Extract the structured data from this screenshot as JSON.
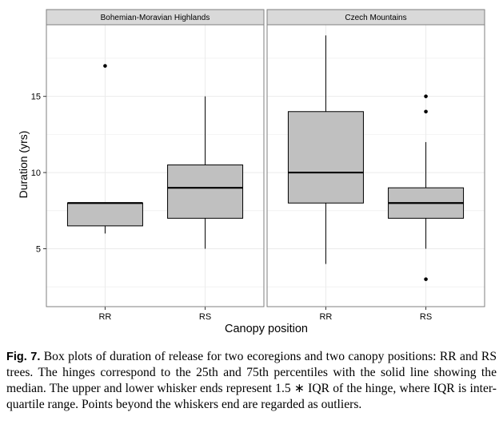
{
  "chart_data": {
    "type": "box",
    "xlabel": "Canopy position",
    "ylabel": "Duration (yrs)",
    "ylim": [
      1.2,
      19.7
    ],
    "yticks": [
      5,
      10,
      15
    ],
    "grid": true,
    "panels": [
      {
        "name": "Bohemian-Moravian  Highlands",
        "categories": [
          "RR",
          "RS"
        ],
        "boxes": [
          {
            "category": "RR",
            "whisker_low": 6,
            "q1": 6.5,
            "median": 8,
            "q3": 8,
            "whisker_high": 8,
            "outliers": [
              17
            ]
          },
          {
            "category": "RS",
            "whisker_low": 5,
            "q1": 7,
            "median": 9,
            "q3": 10.5,
            "whisker_high": 15,
            "outliers": []
          }
        ]
      },
      {
        "name": "Czech Mountains",
        "categories": [
          "RR",
          "RS"
        ],
        "boxes": [
          {
            "category": "RR",
            "whisker_low": 4,
            "q1": 8,
            "median": 10,
            "q3": 14,
            "whisker_high": 19,
            "outliers": []
          },
          {
            "category": "RS",
            "whisker_low": 5,
            "q1": 7,
            "median": 8,
            "q3": 9,
            "whisker_high": 12,
            "outliers": [
              3,
              14,
              15
            ]
          }
        ]
      }
    ],
    "colors": {
      "box_fill": "#c0c0c0",
      "strip_fill": "#d9d9d9",
      "grid": "#ebebeb",
      "panel_border": "#7f7f7f"
    }
  },
  "caption": {
    "label": "Fig. 7.",
    "text": "Box plots of duration of release for two ecoregions and two canopy positions: RR and RS trees. The hinges correspond to the 25th and 75th percentiles with the solid line showing the median. The upper and lower whisker ends represent 1.5 ∗ IQR of the hinge, where IQR is inter-quartile range. Points beyond the whiskers end are regarded as outliers."
  }
}
